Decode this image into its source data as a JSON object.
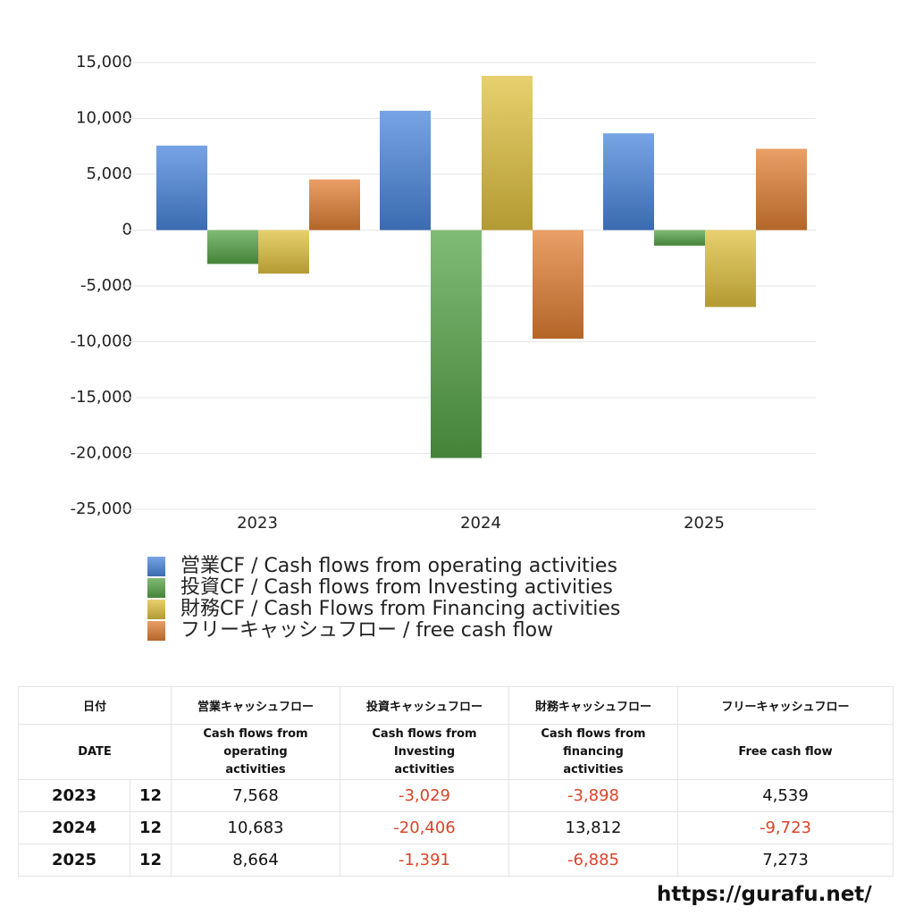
{
  "chart_data": {
    "type": "bar",
    "categories": [
      "2023",
      "2024",
      "2025"
    ],
    "series": [
      {
        "name": "営業CF / Cash flows from operating activities",
        "color": "#4a86dc",
        "values": [
          7568,
          10683,
          8664
        ]
      },
      {
        "name": "投資CF / Cash flows from Investing activities",
        "color": "#56a447",
        "values": [
          -3029,
          -20406,
          -1391
        ]
      },
      {
        "name": "財務CF / Cash Flows from Financing activities",
        "color": "#e0c03e",
        "values": [
          -3898,
          13812,
          -6885
        ]
      },
      {
        "name": "フリーキャッシュフロー / free cash flow",
        "color": "#e17f33",
        "values": [
          4539,
          -9723,
          7273
        ]
      }
    ],
    "ylim": [
      -25000,
      15000
    ],
    "yticks": [
      {
        "value": -25000,
        "label": "-25,000"
      },
      {
        "value": -20000,
        "label": "-20,000"
      },
      {
        "value": -15000,
        "label": "-15,000"
      },
      {
        "value": -10000,
        "label": "-10,000"
      },
      {
        "value": -5000,
        "label": "-5,000"
      },
      0,
      {
        "value": 5000,
        "label": "5,000"
      },
      {
        "value": 10000,
        "label": "10,000"
      },
      {
        "value": 15000,
        "label": "15,000"
      }
    ],
    "grid": true,
    "legend": "bottom"
  },
  "table": {
    "header_ja": [
      "日付",
      "営業キャッシュフロー",
      "投資キャッシュフロー",
      "財務キャッシュフロー",
      "フリーキャッシュフロー"
    ],
    "header_en": [
      "DATE",
      "Cash flows from operating activities",
      "Cash flows from Investing activities",
      "Cash flows from financing activities",
      "Free cash flow"
    ],
    "rows": [
      [
        "2023",
        "12",
        "7,568",
        "-3,029",
        "-3,898",
        "4,539"
      ],
      [
        "2024",
        "12",
        "10,683",
        "-20,406",
        "13,812",
        "-9,723"
      ],
      [
        "2025",
        "12",
        "8,664",
        "-1,391",
        "-6,885",
        "7,273"
      ]
    ]
  },
  "footer": "https://gurafu.net/"
}
